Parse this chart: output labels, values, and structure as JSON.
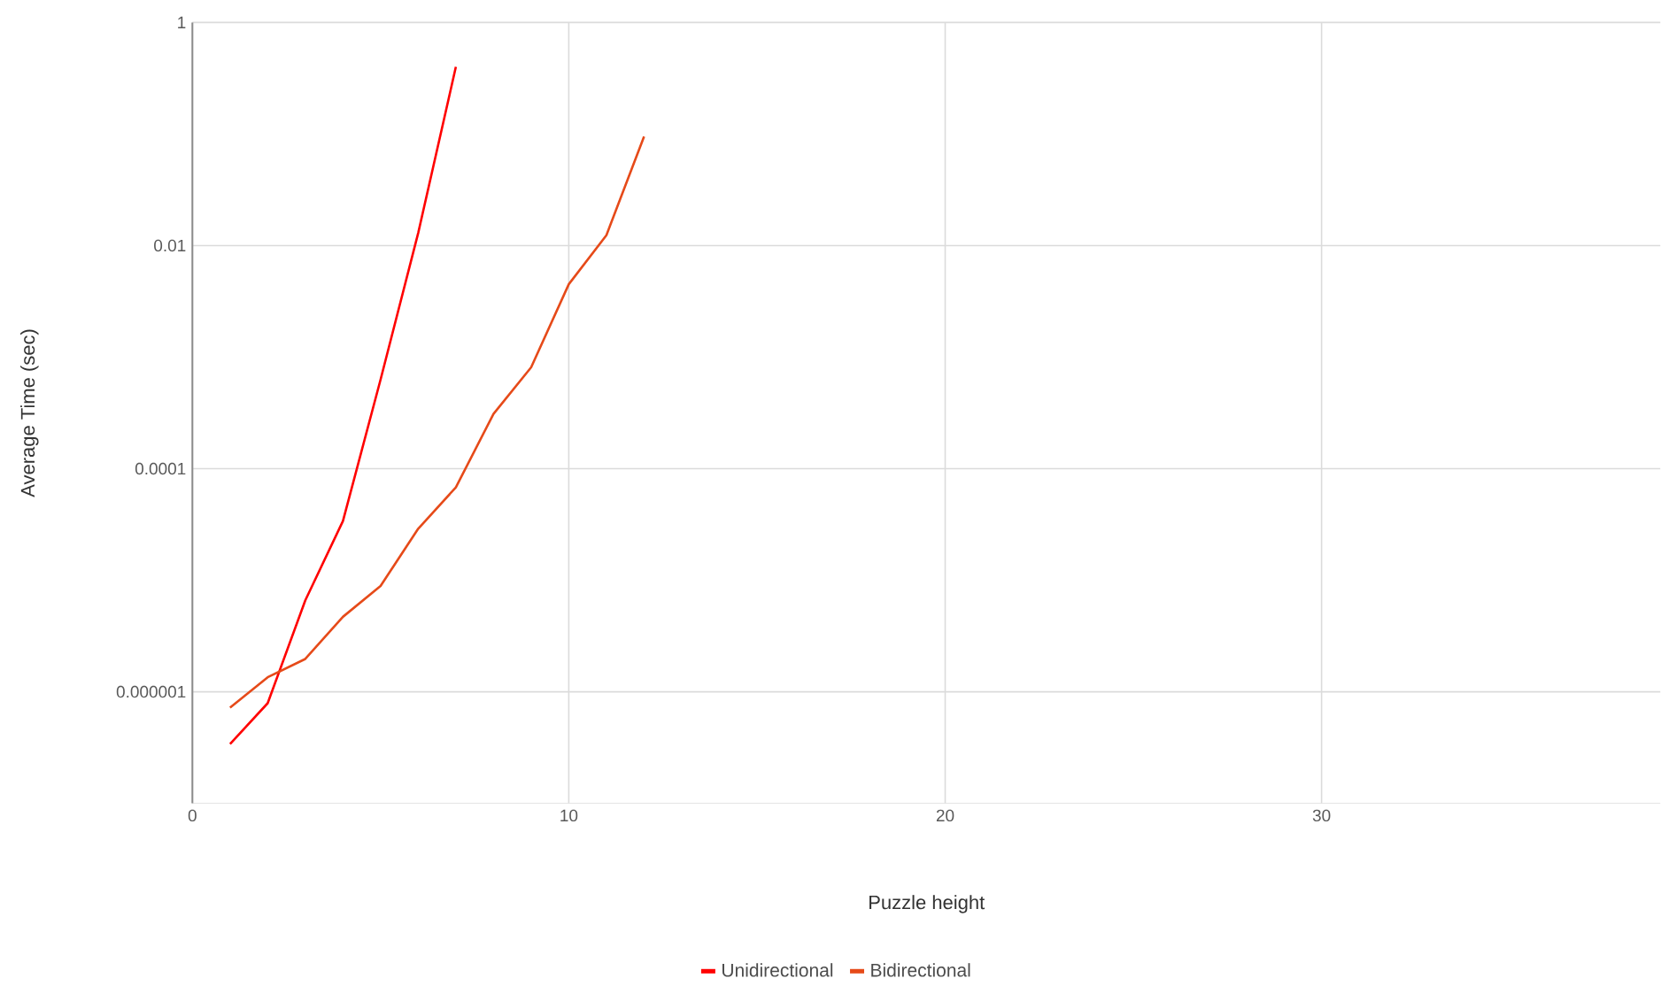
{
  "chart_data": {
    "type": "line",
    "xlabel": "Puzzle height",
    "ylabel": "Average Time (sec)",
    "log": "y",
    "grid": true,
    "legend": "bottom",
    "marker": "none",
    "line_style": "solid",
    "xlim": [
      0,
      39
    ],
    "xticks": [
      0,
      10,
      20,
      30
    ],
    "ylim": [
      1e-07,
      1
    ],
    "yticks": [
      {
        "value": 1e-06,
        "label": "0.000001"
      },
      {
        "value": 0.0001,
        "label": "0.0001"
      },
      {
        "value": 0.01,
        "label": "0.01"
      },
      1
    ],
    "series": [
      {
        "name": "Unidirectional",
        "color": "#ff0000",
        "x": [
          1,
          2,
          3,
          4,
          5,
          6,
          7
        ],
        "values": [
          3.4e-07,
          7.9e-07,
          6.6e-06,
          3.4e-05,
          0.00063,
          0.013,
          0.4
        ]
      },
      {
        "name": "Bidirectional",
        "color": "#e64a19",
        "x": [
          1,
          2,
          3,
          4,
          5,
          6,
          7,
          8,
          9,
          10,
          11,
          12
        ],
        "values": [
          7.2e-07,
          1.35e-06,
          1.97e-06,
          4.7e-06,
          8.9e-06,
          2.9e-05,
          6.8e-05,
          0.00031,
          0.00081,
          0.0045,
          0.0124,
          0.095
        ]
      }
    ]
  }
}
